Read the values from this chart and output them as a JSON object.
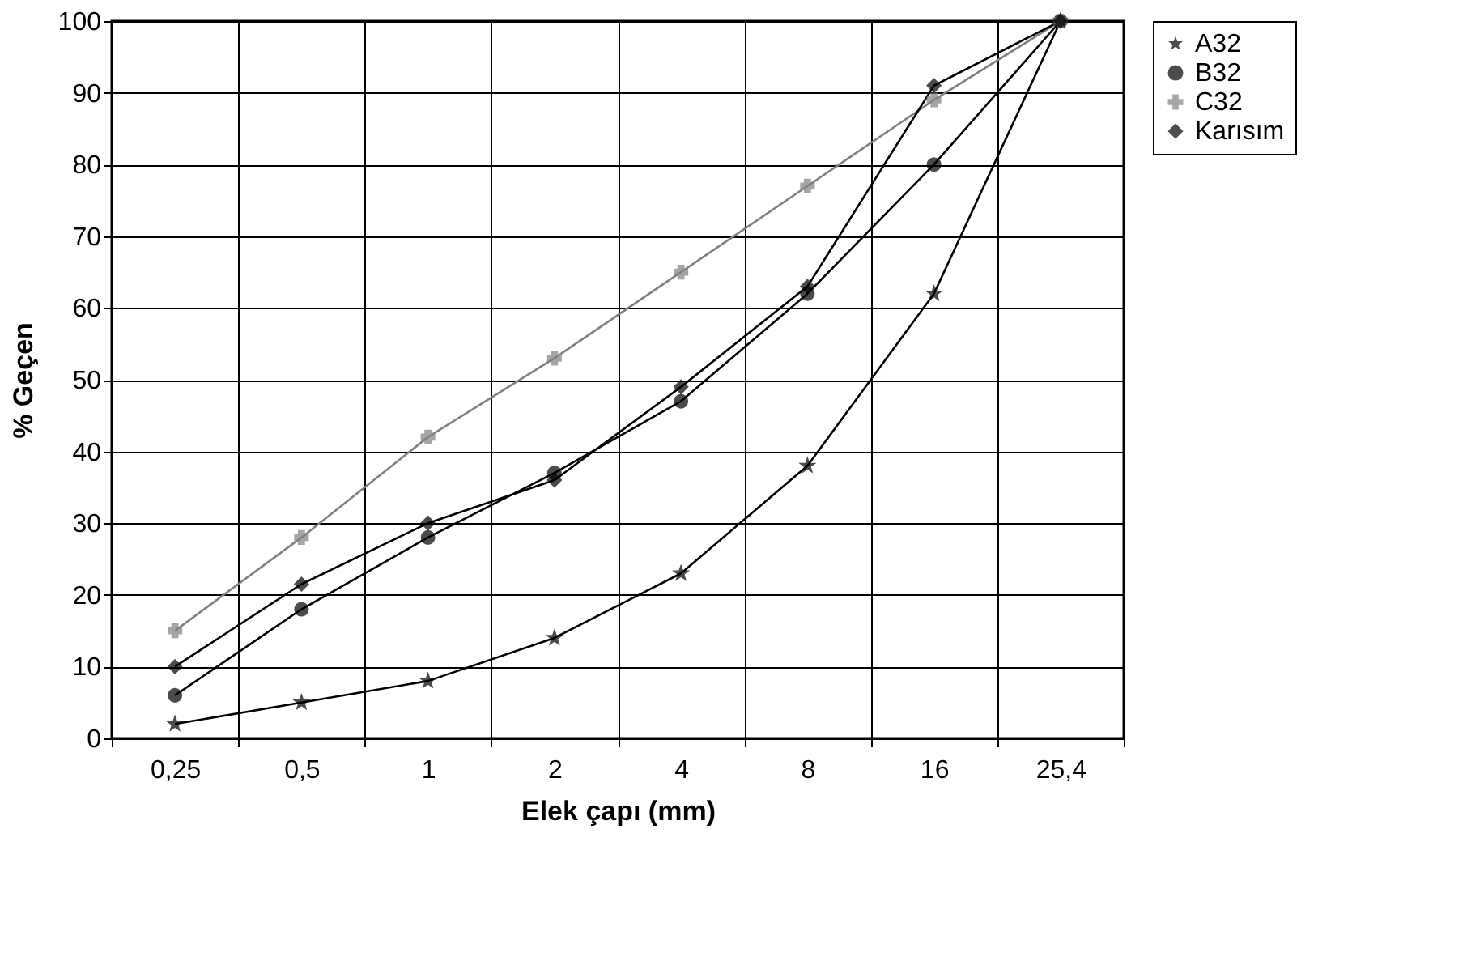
{
  "chart_data": {
    "type": "line",
    "xlabel": "Elek çapı (mm)",
    "ylabel": "% Geçen",
    "categories": [
      "0,25",
      "0,5",
      "1",
      "2",
      "4",
      "8",
      "16",
      "25,4"
    ],
    "series": [
      {
        "name": "A32",
        "color": "#000000",
        "marker": "star",
        "values": [
          2,
          5,
          8,
          14,
          23,
          38,
          62,
          100
        ]
      },
      {
        "name": "B32",
        "color": "#000000",
        "marker": "circle",
        "values": [
          6,
          18,
          28,
          37,
          47,
          62,
          80,
          100
        ]
      },
      {
        "name": "C32",
        "color": "#808080",
        "marker": "cross",
        "values": [
          15,
          28,
          42,
          53,
          65,
          77,
          89,
          100
        ]
      },
      {
        "name": "Karısım",
        "color": "#000000",
        "marker": "diamond",
        "values": [
          10,
          21.5,
          30,
          36,
          49,
          63,
          91,
          100
        ]
      }
    ],
    "ylim": [
      0,
      100
    ],
    "yticks": [
      0,
      10,
      20,
      30,
      40,
      50,
      60,
      70,
      80,
      90,
      100
    ],
    "grid": true,
    "legend": "right",
    "line_style": "solid"
  }
}
